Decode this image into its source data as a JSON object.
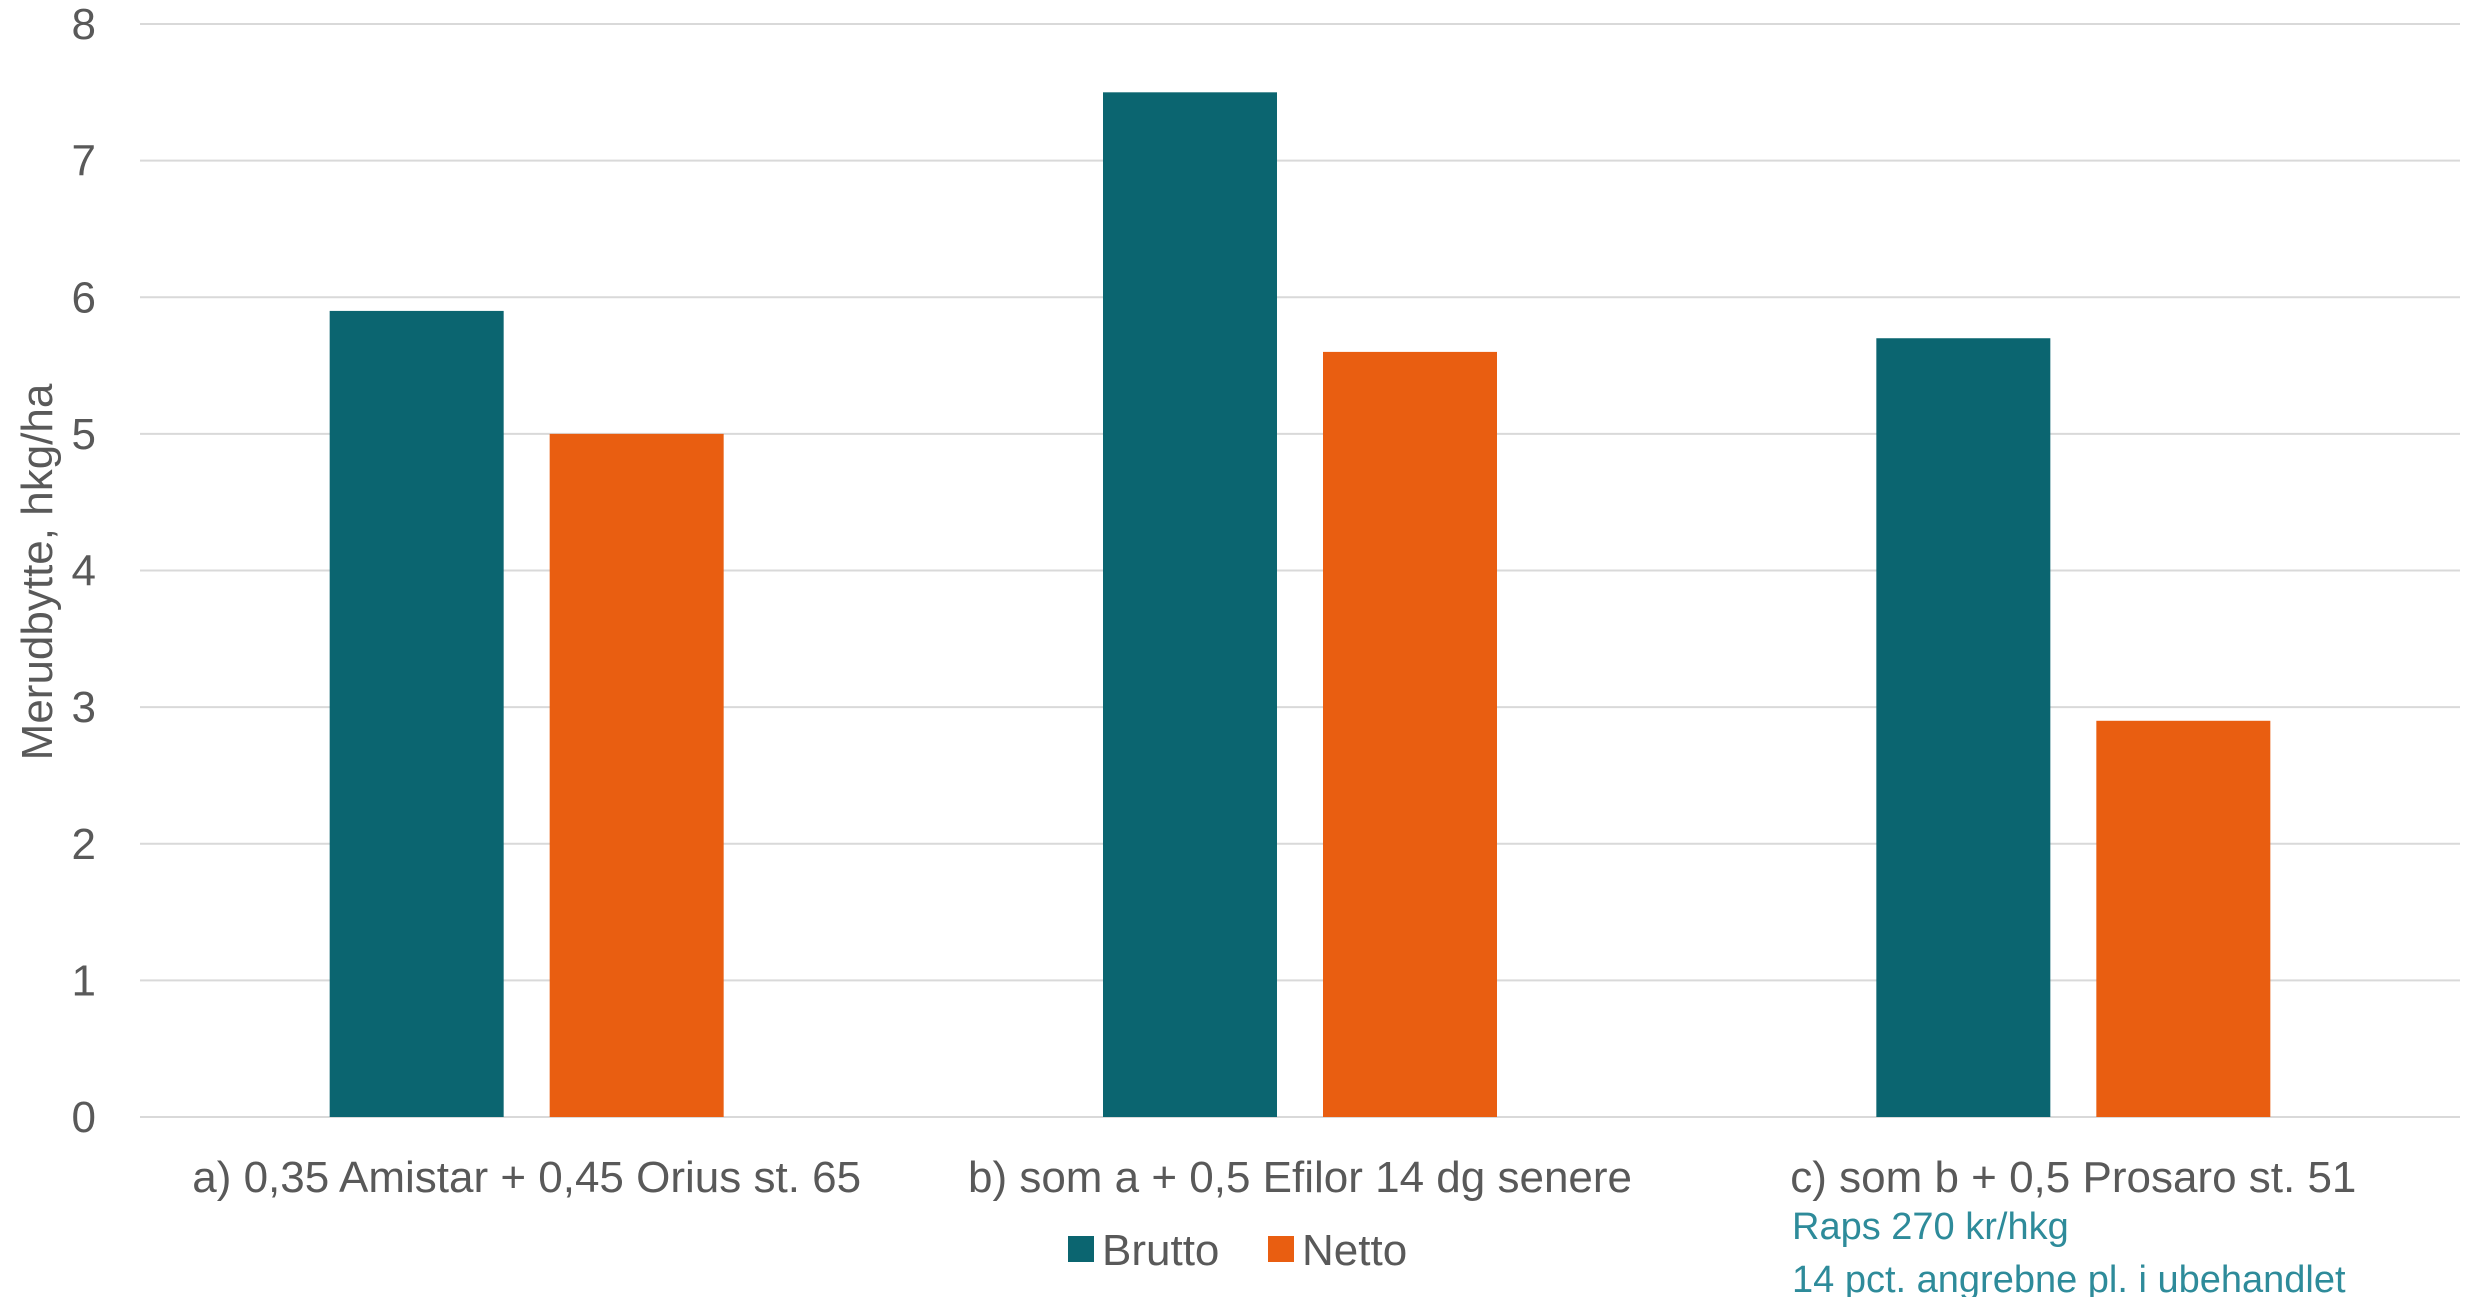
{
  "chart_data": {
    "type": "bar",
    "ylabel": "Merudbytte, hkg/ha",
    "xlabel": "",
    "ylim": [
      0,
      8
    ],
    "yticks": [
      0,
      1,
      2,
      3,
      4,
      5,
      6,
      7,
      8
    ],
    "grid": true,
    "legend_position": "bottom",
    "categories": [
      "a) 0,35 Amistar + 0,45 Orius st. 65",
      "b) som a + 0,5 Efilor 14 dg senere",
      "c) som b + 0,5 Prosaro st. 51"
    ],
    "series": [
      {
        "name": "Brutto",
        "values": [
          5.9,
          7.5,
          5.7
        ],
        "color": "#0B6570"
      },
      {
        "name": "Netto",
        "values": [
          5.0,
          5.6,
          2.9
        ],
        "color": "#E95E11"
      }
    ],
    "annotations": [
      "Raps 270 kr/hkg",
      "14 pct. angrebne pl. i ubehandlet"
    ]
  }
}
